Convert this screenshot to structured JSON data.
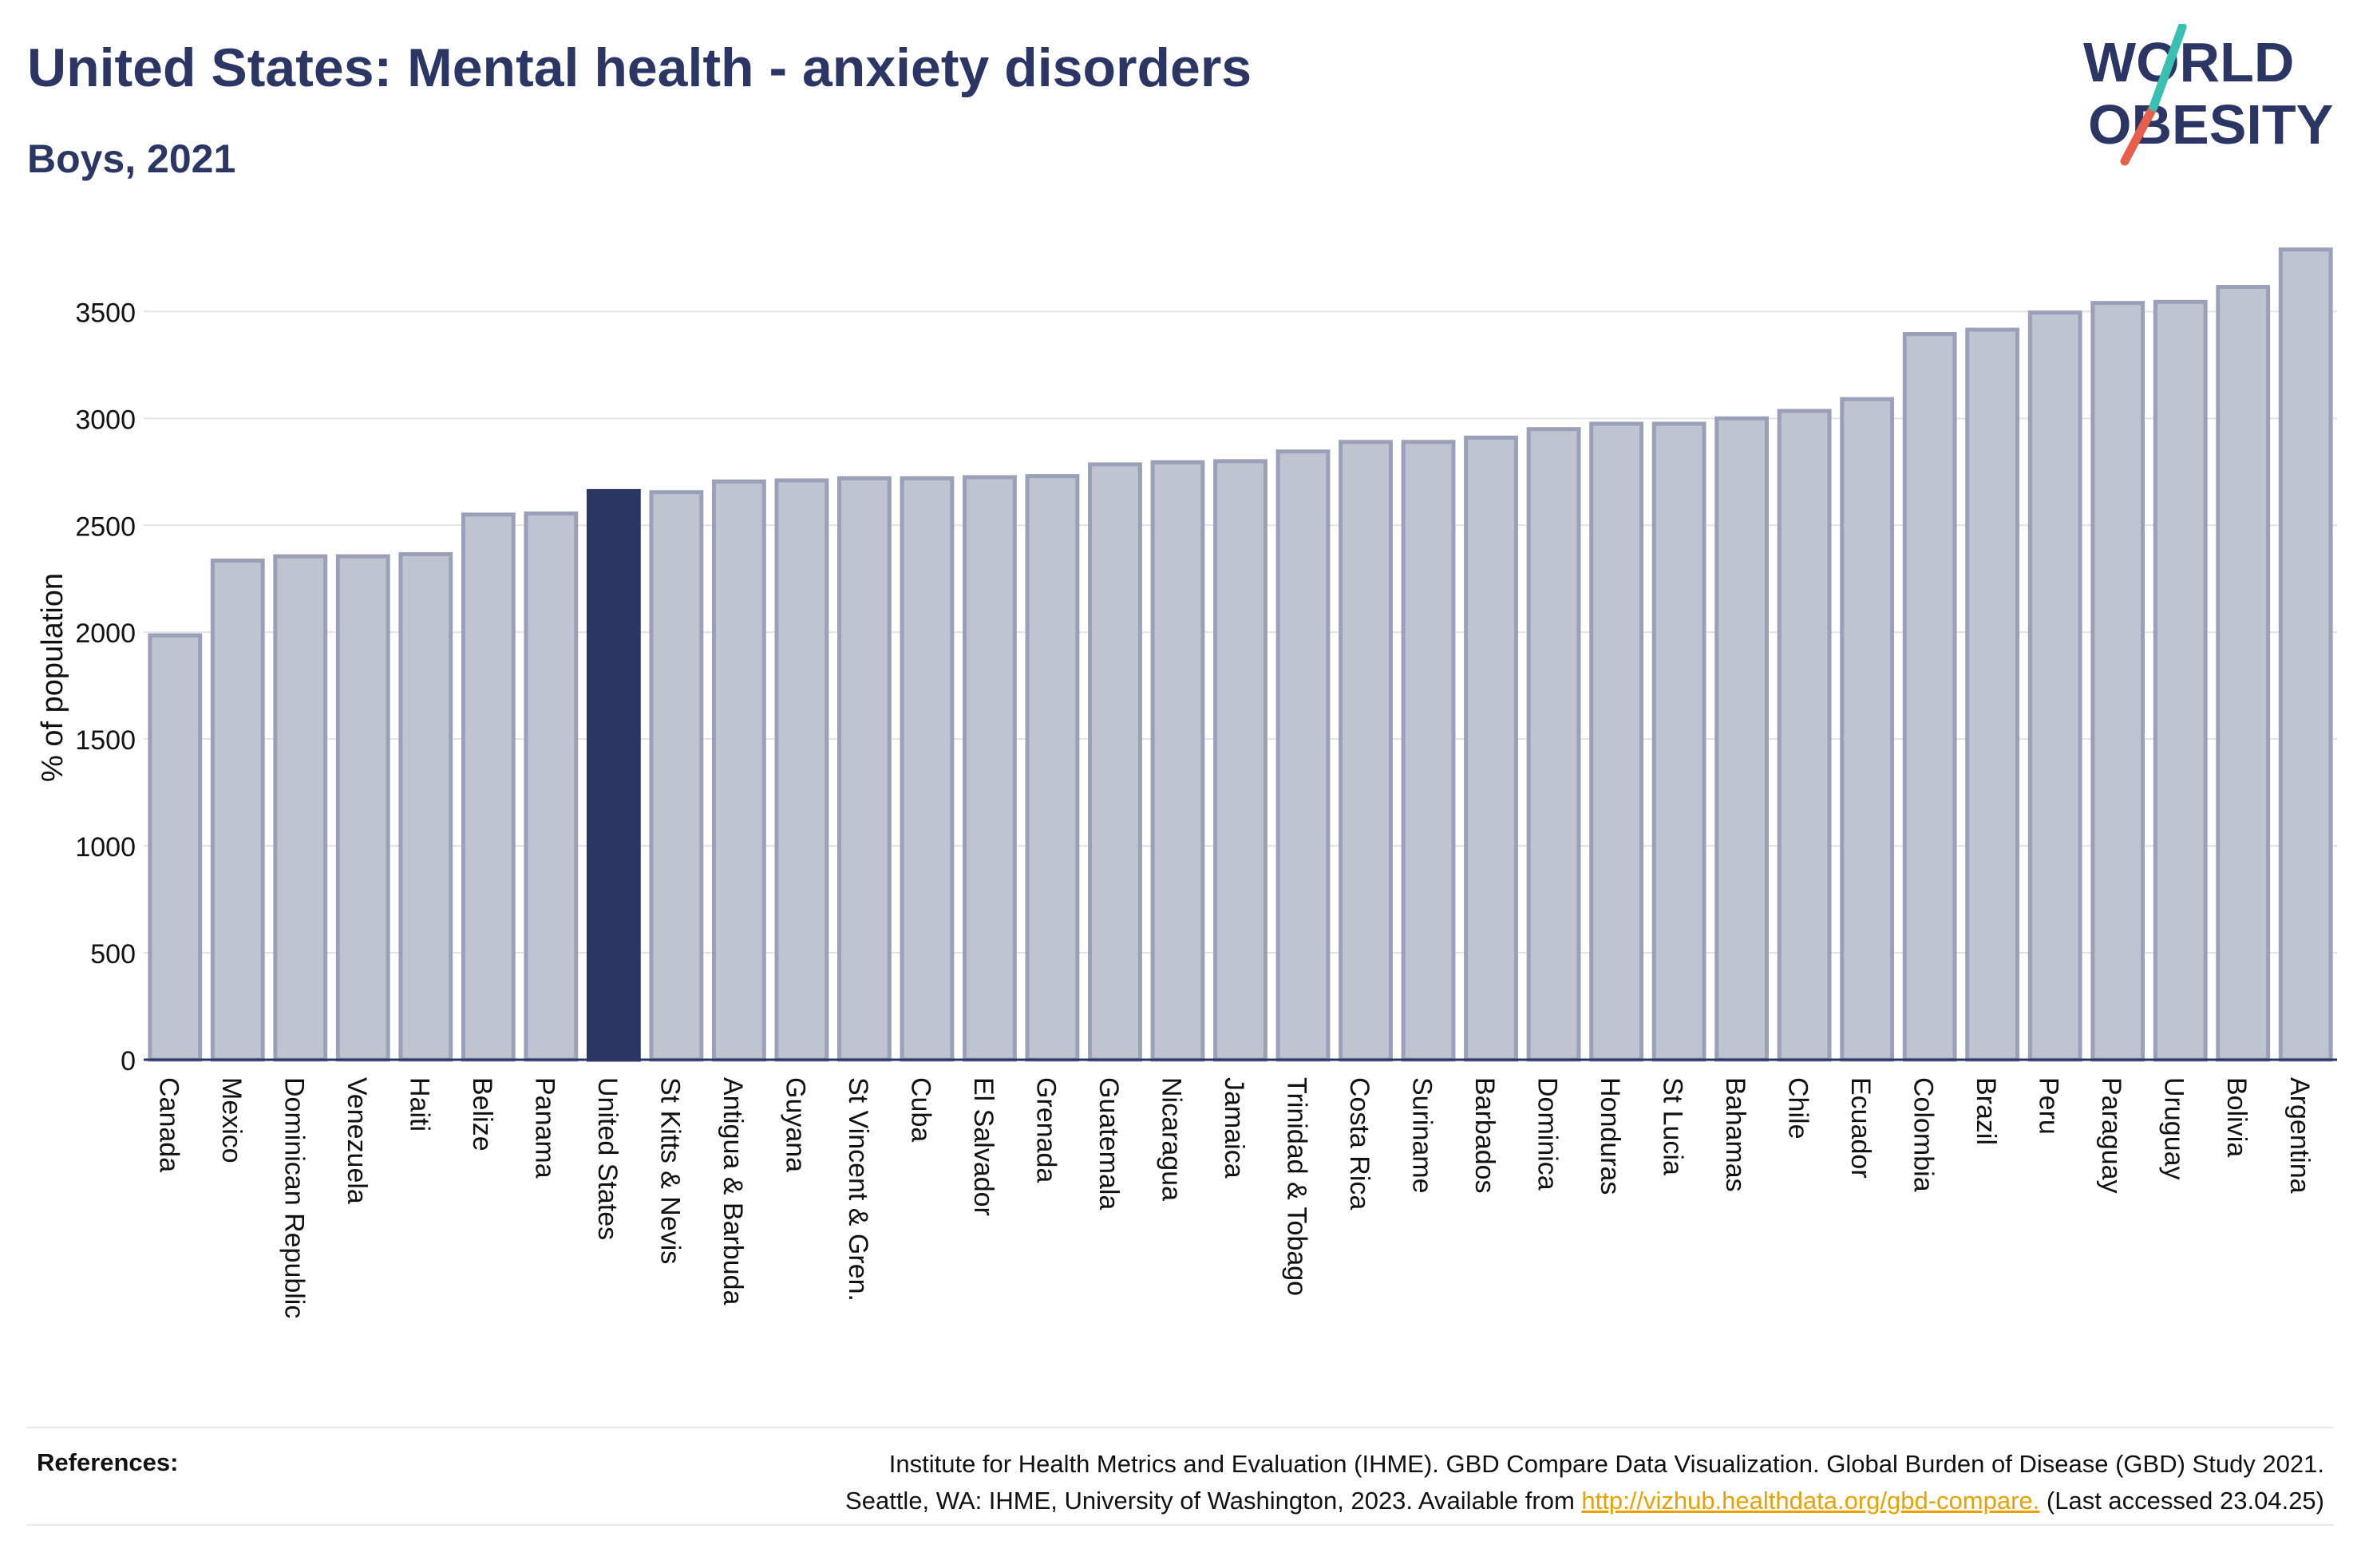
{
  "header": {
    "title": "United States: Mental health - anxiety disorders",
    "subtitle": "Boys, 2021"
  },
  "logo": {
    "line1": "WORLD",
    "line2": "OBESITY",
    "colors": [
      "#2b3664",
      "#39c0b0",
      "#e8604c"
    ]
  },
  "colors": {
    "highlight": "#2b3664",
    "bar_fill": "#c0c3d0",
    "bar_stroke": "#9aa0b8",
    "axis": "#2b3664",
    "grid": "#e3e3e3",
    "link": "#e8a100"
  },
  "chart_data": {
    "type": "bar",
    "ylabel": "% of population",
    "ylim": [
      0,
      3800
    ],
    "yticks": [
      0,
      500,
      1000,
      1500,
      2000,
      2500,
      3000,
      3500
    ],
    "highlight": "United States",
    "categories": [
      "Canada",
      "Mexico",
      "Dominican Republic",
      "Venezuela",
      "Haiti",
      "Belize",
      "Panama",
      "United States",
      "St Kitts & Nevis",
      "Antigua & Barbuda",
      "Guyana",
      "St Vincent & Gren.",
      "Cuba",
      "El Salvador",
      "Grenada",
      "Guatemala",
      "Nicaragua",
      "Jamaica",
      "Trinidad & Tobago",
      "Costa Rica",
      "Suriname",
      "Barbados",
      "Dominica",
      "Honduras",
      "St Lucia",
      "Bahamas",
      "Chile",
      "Ecuador",
      "Colombia",
      "Brazil",
      "Peru",
      "Paraguay",
      "Uruguay",
      "Bolivia",
      "Argentina"
    ],
    "values": [
      1985,
      2335,
      2355,
      2355,
      2365,
      2550,
      2555,
      2660,
      2655,
      2705,
      2710,
      2720,
      2720,
      2725,
      2730,
      2785,
      2795,
      2800,
      2845,
      2890,
      2890,
      2910,
      2950,
      2975,
      2975,
      3000,
      3035,
      3090,
      3395,
      3415,
      3495,
      3540,
      3545,
      3615,
      3790
    ]
  },
  "references": {
    "label": "References:",
    "line1": "Institute for Health Metrics and Evaluation (IHME). GBD Compare Data Visualization. Global Burden of Disease (GBD) Study 2021.",
    "line2_prefix": "Seattle, WA: IHME, University of Washington, 2023. Available from ",
    "link": "http://vizhub.healthdata.org/gbd-compare.",
    "line2_suffix": " (Last accessed 23.04.25)"
  }
}
